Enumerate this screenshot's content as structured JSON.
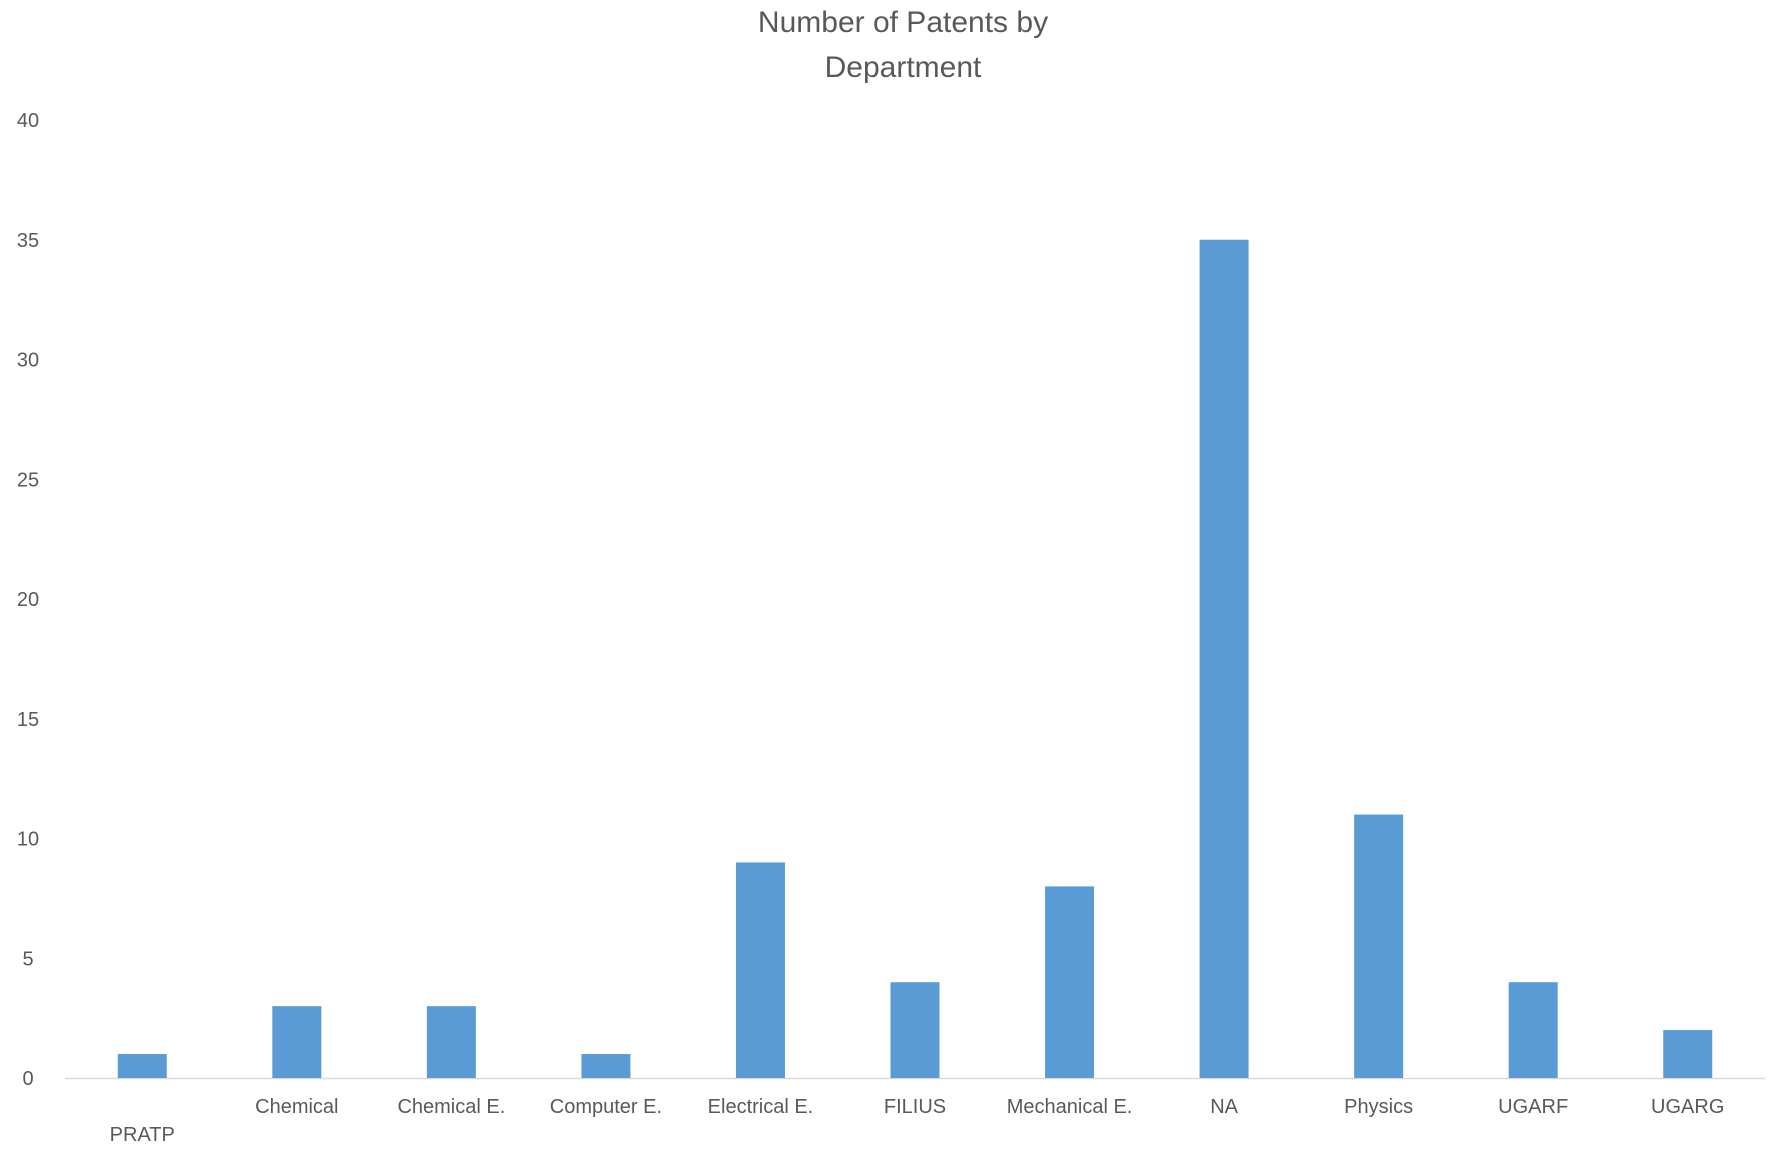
{
  "chart_data": {
    "type": "bar",
    "title_lines": [
      "Number of Patents by",
      "Department"
    ],
    "categories": [
      "PRATP",
      "Chemical",
      "Chemical E.",
      "Computer E.",
      "Electrical E.",
      "FILIUS",
      "Mechanical E.",
      "NA",
      "Physics",
      "UGARF",
      "UGARG"
    ],
    "values": [
      1,
      3,
      3,
      1,
      9,
      4,
      8,
      35,
      11,
      4,
      2
    ],
    "ylim": [
      0,
      40
    ],
    "yticks": [
      0,
      5,
      10,
      15,
      20,
      25,
      30,
      35,
      40
    ],
    "xlabel": "",
    "ylabel": "",
    "grid": false,
    "legend": "none",
    "bar_color": "#5b9bd5",
    "axis_color": "#d9d9d9",
    "text_color": "#595959"
  }
}
